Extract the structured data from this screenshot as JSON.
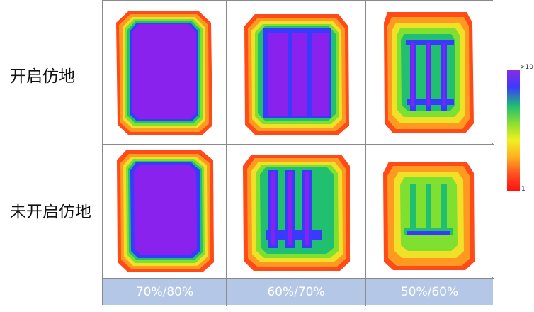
{
  "row_labels": [
    "开启仿地",
    "未开启仿地"
  ],
  "column_labels": [
    "70%/80%",
    "60%/70%",
    "50%/60%"
  ],
  "colorbar": {
    "max_label": ">10",
    "min_label": "1",
    "colors": [
      "#8a2be2",
      "#3a3aff",
      "#20c070",
      "#90e030",
      "#f0f020",
      "#ffb020",
      "#ff5020",
      "#ff1010"
    ]
  }
}
